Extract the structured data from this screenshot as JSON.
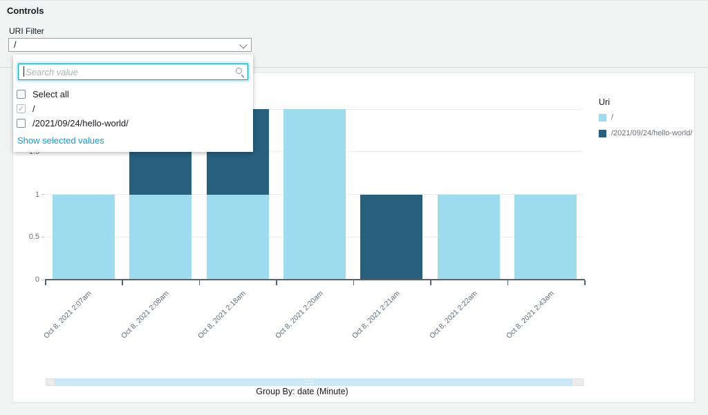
{
  "controls": {
    "title": "Controls",
    "filter_label": "URI Filter",
    "selected_value": "/"
  },
  "dropdown": {
    "search_placeholder": "Search value",
    "search_value": "",
    "select_all_label": "Select all",
    "options": [
      {
        "label": "/",
        "checked": true
      },
      {
        "label": "/2021/09/24/hello-world/",
        "checked": false
      }
    ],
    "show_selected_label": "Show selected values"
  },
  "legend": {
    "title": "Uri",
    "items": [
      {
        "label": "/",
        "color": "#9ddcee"
      },
      {
        "label": "/2021/09/24/hello-world/",
        "color": "#275f7c"
      }
    ]
  },
  "chart_data": {
    "type": "bar",
    "stacked": true,
    "categories": [
      "Oct 8, 2021 2:07am",
      "Oct 8, 2021 2:08am",
      "Oct 8, 2021 2:18am",
      "Oct 8, 2021 2:20am",
      "Oct 8, 2021 2:21am",
      "Oct 8, 2021 2:22am",
      "Oct 8, 2021 2:43am"
    ],
    "series": [
      {
        "name": "/",
        "color": "#9ddcee",
        "values": [
          1,
          1,
          1,
          2,
          0,
          1,
          1
        ]
      },
      {
        "name": "/2021/09/24/hello-world/",
        "color": "#275f7c",
        "values": [
          0,
          1,
          1,
          0,
          1,
          0,
          0
        ]
      }
    ],
    "title": "",
    "xlabel": "",
    "ylabel": "",
    "ylim": [
      0,
      2
    ],
    "yticks": [
      0,
      0.5,
      1,
      1.5,
      2
    ],
    "grid": true,
    "legend_position": "right",
    "group_by_label": "Group By: date (Minute)"
  },
  "colors": {
    "page_bg": "#f2f3f3",
    "card_bg": "#ffffff",
    "light_bar": "#9ddcee",
    "dark_bar": "#275f7c",
    "link_blue": "#0c9dd9",
    "axis": "#56616b",
    "gridline": "#e9ebed",
    "scroll_track": "#cbe7f8"
  }
}
